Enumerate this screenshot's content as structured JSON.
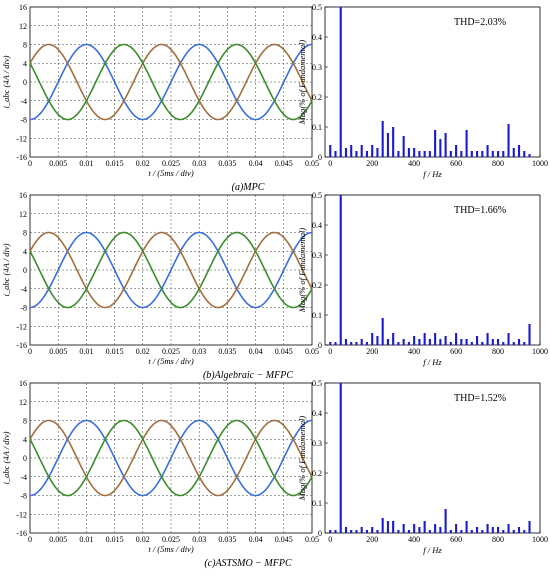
{
  "figure": {
    "panels": [
      {
        "caption": "(a)MPC",
        "wave": {
          "type": "line",
          "ylabel": "i_abc (4A / div)",
          "xlabel": "t / (5ms / div)",
          "xlim": [
            0,
            0.05
          ],
          "ylim": [
            -16,
            16
          ],
          "xticks": [
            "0",
            "0.005",
            "0.01",
            "0.015",
            "0.02",
            "0.025",
            "0.03",
            "0.035",
            "0.04",
            "0.045",
            "0.05"
          ],
          "yticks": [
            "16",
            "12",
            "8",
            "4",
            "0",
            "-4",
            "-8",
            "-12",
            "-16"
          ],
          "grid": true,
          "series": [
            {
              "amplitude": 8,
              "frequency_hz": 50,
              "phase_deg": -90,
              "color": "#3b6fdc"
            },
            {
              "amplitude": 8,
              "frequency_hz": 50,
              "phase_deg": 30,
              "color": "#a07040"
            },
            {
              "amplitude": 8,
              "frequency_hz": 50,
              "phase_deg": 150,
              "color": "#3c8c2c"
            }
          ]
        },
        "spectrum": {
          "type": "bar",
          "ylabel": "Mag(% of Fundamental)",
          "xlabel": "f / Hz",
          "xlim": [
            -25,
            1000
          ],
          "ylim": [
            0,
            0.5
          ],
          "xticks": [
            "0",
            "200",
            "400",
            "600",
            "800",
            "1000"
          ],
          "yticks": [
            "0",
            "0.1",
            "0.2",
            "0.3",
            "0.4",
            "0.5"
          ],
          "thd_label": "THD=2.03%",
          "bar_color": "#1a1ad0",
          "x": [
            0,
            25,
            50,
            75,
            100,
            125,
            150,
            175,
            200,
            225,
            250,
            275,
            300,
            325,
            350,
            375,
            400,
            425,
            450,
            475,
            500,
            525,
            550,
            575,
            600,
            625,
            650,
            675,
            700,
            725,
            750,
            775,
            800,
            825,
            850,
            875,
            900,
            925,
            950
          ],
          "values": [
            0.04,
            0.02,
            0.5,
            0.03,
            0.04,
            0.02,
            0.04,
            0.02,
            0.04,
            0.03,
            0.12,
            0.08,
            0.1,
            0.02,
            0.07,
            0.03,
            0.03,
            0.02,
            0.02,
            0.02,
            0.09,
            0.06,
            0.08,
            0.02,
            0.04,
            0.02,
            0.09,
            0.02,
            0.02,
            0.02,
            0.04,
            0.02,
            0.02,
            0.02,
            0.11,
            0.03,
            0.04,
            0.02,
            0.01
          ]
        }
      },
      {
        "caption": "(b)Algebraic − MFPC",
        "wave": {
          "type": "line",
          "ylabel": "i_abc (4A / div)",
          "xlabel": "t / (5ms / div)",
          "xlim": [
            0,
            0.05
          ],
          "ylim": [
            -16,
            16
          ],
          "xticks": [
            "0",
            "0.005",
            "0.01",
            "0.015",
            "0.02",
            "0.025",
            "0.03",
            "0.035",
            "0.04",
            "0.045",
            "0.05"
          ],
          "yticks": [
            "16",
            "12",
            "8",
            "4",
            "0",
            "-4",
            "-8",
            "-12",
            "-16"
          ],
          "grid": true,
          "series": [
            {
              "amplitude": 8,
              "frequency_hz": 50,
              "phase_deg": -90,
              "color": "#3b6fdc"
            },
            {
              "amplitude": 8,
              "frequency_hz": 50,
              "phase_deg": 30,
              "color": "#a07040"
            },
            {
              "amplitude": 8,
              "frequency_hz": 50,
              "phase_deg": 150,
              "color": "#3c8c2c"
            }
          ]
        },
        "spectrum": {
          "type": "bar",
          "ylabel": "Mag(% of Fundamental)",
          "xlabel": "f / Hz",
          "xlim": [
            -25,
            1000
          ],
          "ylim": [
            0,
            0.5
          ],
          "xticks": [
            "0",
            "200",
            "400",
            "600",
            "800",
            "1000"
          ],
          "yticks": [
            "0",
            "0.1",
            "0.2",
            "0.3",
            "0.4",
            "0.5"
          ],
          "thd_label": "THD=1.66%",
          "bar_color": "#1a1ad0",
          "x": [
            0,
            25,
            50,
            75,
            100,
            125,
            150,
            175,
            200,
            225,
            250,
            275,
            300,
            325,
            350,
            375,
            400,
            425,
            450,
            475,
            500,
            525,
            550,
            575,
            600,
            625,
            650,
            675,
            700,
            725,
            750,
            775,
            800,
            825,
            850,
            875,
            900,
            925,
            950
          ],
          "values": [
            0.01,
            0.01,
            0.5,
            0.02,
            0.01,
            0.01,
            0.02,
            0.01,
            0.04,
            0.03,
            0.09,
            0.02,
            0.04,
            0.01,
            0.02,
            0.01,
            0.03,
            0.02,
            0.04,
            0.02,
            0.04,
            0.02,
            0.03,
            0.01,
            0.04,
            0.02,
            0.02,
            0.01,
            0.03,
            0.01,
            0.04,
            0.02,
            0.02,
            0.01,
            0.04,
            0.01,
            0.02,
            0.01,
            0.07
          ]
        }
      },
      {
        "caption": "(c)ASTSMO − MFPC",
        "wave": {
          "type": "line",
          "ylabel": "i_abc (4A / div)",
          "xlabel": "t / (5ms / div)",
          "xlim": [
            0,
            0.05
          ],
          "ylim": [
            -16,
            16
          ],
          "xticks": [
            "0",
            "0.005",
            "0.01",
            "0.015",
            "0.02",
            "0.025",
            "0.03",
            "0.035",
            "0.04",
            "0.045",
            "0.05"
          ],
          "yticks": [
            "16",
            "12",
            "8",
            "4",
            "0",
            "-4",
            "-8",
            "-12",
            "-16"
          ],
          "grid": true,
          "series": [
            {
              "amplitude": 8,
              "frequency_hz": 50,
              "phase_deg": -90,
              "color": "#3b6fdc"
            },
            {
              "amplitude": 8,
              "frequency_hz": 50,
              "phase_deg": 30,
              "color": "#a07040"
            },
            {
              "amplitude": 8,
              "frequency_hz": 50,
              "phase_deg": 150,
              "color": "#3c8c2c"
            }
          ]
        },
        "spectrum": {
          "type": "bar",
          "ylabel": "Mag(% of Fundamental)",
          "xlabel": "f / Hz",
          "xlim": [
            -25,
            1000
          ],
          "ylim": [
            0,
            0.5
          ],
          "xticks": [
            "0",
            "200",
            "400",
            "600",
            "800",
            "1000"
          ],
          "yticks": [
            "0",
            "0.1",
            "0.2",
            "0.3",
            "0.4",
            "0.5"
          ],
          "thd_label": "THD=1.52%",
          "bar_color": "#1a1ad0",
          "x": [
            0,
            25,
            50,
            75,
            100,
            125,
            150,
            175,
            200,
            225,
            250,
            275,
            300,
            325,
            350,
            375,
            400,
            425,
            450,
            475,
            500,
            525,
            550,
            575,
            600,
            625,
            650,
            675,
            700,
            725,
            750,
            775,
            800,
            825,
            850,
            875,
            900,
            925,
            950
          ],
          "values": [
            0.01,
            0.01,
            0.5,
            0.02,
            0.01,
            0.01,
            0.02,
            0.01,
            0.02,
            0.01,
            0.05,
            0.04,
            0.04,
            0.01,
            0.03,
            0.01,
            0.03,
            0.02,
            0.04,
            0.01,
            0.03,
            0.02,
            0.08,
            0.01,
            0.03,
            0.01,
            0.04,
            0.01,
            0.02,
            0.01,
            0.03,
            0.02,
            0.02,
            0.01,
            0.03,
            0.01,
            0.02,
            0.01,
            0.04
          ]
        }
      }
    ]
  }
}
